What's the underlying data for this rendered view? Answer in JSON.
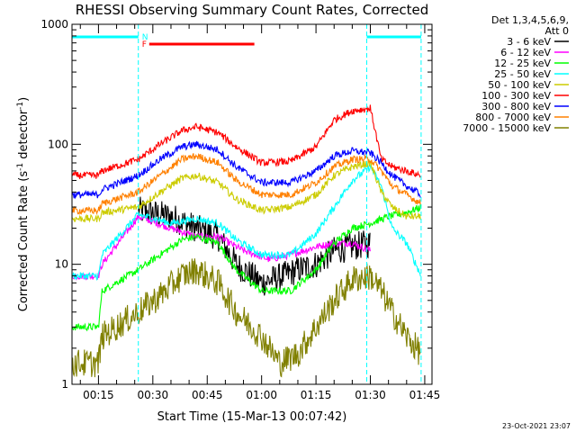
{
  "chart_data": {
    "type": "line",
    "title": "RHESSI Observing Summary Count Rates, Corrected",
    "xlabel": "Start Time (15-Mar-13 00:07:42)",
    "ylabel": "Corrected Count Rate (s⁻¹ detector⁻¹)",
    "ylabel_parts": {
      "main": "Corrected Count Rate (s",
      "sup1": "-1",
      "mid": " detector",
      "sup2": "-1",
      "end": ")"
    },
    "y_scale": "log",
    "xlim": [
      "00:07:42",
      "01:47:00"
    ],
    "ylim": [
      1,
      1000
    ],
    "x_ticks": [
      "00:15",
      "00:30",
      "00:45",
      "01:00",
      "01:15",
      "01:30",
      "01:45"
    ],
    "y_ticks": [
      "1",
      "10",
      "100",
      "1000"
    ],
    "legend": {
      "placement": "right-outside",
      "header": [
        "Det 1,3,4,5,6,9,",
        "Att 0"
      ]
    },
    "timestamp": "23-Oct-2021 23:07",
    "flags": [
      {
        "label": "F",
        "color": "#ff0000",
        "start": "00:29",
        "end": "00:58"
      },
      {
        "label": "N",
        "color": "#00ffff",
        "start": "00:07:42",
        "end": "00:26",
        "extra": [
          "01:29",
          "01:44"
        ]
      }
    ],
    "night_boundaries": [
      "00:26",
      "01:29",
      "01:44"
    ],
    "series": [
      {
        "name": "3 - 6 keV",
        "color": "#000000",
        "points": [
          [
            "00:26",
            28
          ],
          [
            "00:35",
            25
          ],
          [
            "00:42",
            20
          ],
          [
            "00:48",
            17
          ],
          [
            "00:53",
            10
          ],
          [
            "01:00",
            7
          ],
          [
            "01:06",
            8
          ],
          [
            "01:10",
            9
          ],
          [
            "01:15",
            10
          ],
          [
            "01:20",
            13
          ],
          [
            "01:25",
            14
          ],
          [
            "01:30",
            15
          ]
        ]
      },
      {
        "name": "6 - 12 keV",
        "color": "#ff00ff",
        "points": [
          [
            "00:07:42",
            8
          ],
          [
            "00:15",
            8
          ],
          [
            "00:16",
            10
          ],
          [
            "00:26",
            25
          ],
          [
            "00:35",
            20
          ],
          [
            "00:42",
            17
          ],
          [
            "00:48",
            17
          ],
          [
            "00:55",
            13
          ],
          [
            "01:02",
            11
          ],
          [
            "01:08",
            12
          ],
          [
            "01:15",
            14
          ],
          [
            "01:20",
            15
          ],
          [
            "01:25",
            15
          ],
          [
            "01:30",
            13
          ]
        ]
      },
      {
        "name": "12 - 25 keV",
        "color": "#00ff00",
        "points": [
          [
            "00:07:42",
            3
          ],
          [
            "00:15",
            3
          ],
          [
            "00:16",
            6
          ],
          [
            "00:26",
            9
          ],
          [
            "00:32",
            12
          ],
          [
            "00:38",
            16
          ],
          [
            "00:42",
            17
          ],
          [
            "00:48",
            15
          ],
          [
            "00:53",
            9
          ],
          [
            "01:00",
            6
          ],
          [
            "01:08",
            6
          ],
          [
            "01:15",
            9
          ],
          [
            "01:20",
            15
          ],
          [
            "01:25",
            20
          ],
          [
            "01:30",
            22
          ],
          [
            "01:35",
            25
          ],
          [
            "01:40",
            27
          ],
          [
            "01:44",
            30
          ]
        ]
      },
      {
        "name": "25 - 50 keV",
        "color": "#00ffff",
        "points": [
          [
            "00:07:42",
            8
          ],
          [
            "00:15",
            8
          ],
          [
            "00:16",
            12
          ],
          [
            "00:26",
            26
          ],
          [
            "00:35",
            22
          ],
          [
            "00:42",
            24
          ],
          [
            "00:48",
            22
          ],
          [
            "00:53",
            16
          ],
          [
            "01:00",
            12
          ],
          [
            "01:08",
            12
          ],
          [
            "01:15",
            18
          ],
          [
            "01:20",
            30
          ],
          [
            "01:25",
            50
          ],
          [
            "01:30",
            65
          ],
          [
            "01:33",
            45
          ],
          [
            "01:36",
            20
          ],
          [
            "01:40",
            15
          ],
          [
            "01:44",
            8
          ]
        ]
      },
      {
        "name": "50 - 100 keV",
        "color": "#cccc00",
        "points": [
          [
            "00:07:42",
            24
          ],
          [
            "00:15",
            24
          ],
          [
            "00:16",
            27
          ],
          [
            "00:26",
            30
          ],
          [
            "00:32",
            40
          ],
          [
            "00:38",
            52
          ],
          [
            "00:42",
            55
          ],
          [
            "00:48",
            48
          ],
          [
            "00:53",
            35
          ],
          [
            "01:00",
            28
          ],
          [
            "01:08",
            30
          ],
          [
            "01:15",
            38
          ],
          [
            "01:20",
            55
          ],
          [
            "01:25",
            65
          ],
          [
            "01:30",
            70
          ],
          [
            "01:33",
            40
          ],
          [
            "01:36",
            30
          ],
          [
            "01:40",
            25
          ],
          [
            "01:44",
            25
          ]
        ]
      },
      {
        "name": "100 - 300 keV",
        "color": "#ff0000",
        "points": [
          [
            "00:07:42",
            55
          ],
          [
            "00:15",
            55
          ],
          [
            "00:16",
            60
          ],
          [
            "00:26",
            75
          ],
          [
            "00:32",
            100
          ],
          [
            "00:38",
            130
          ],
          [
            "00:42",
            140
          ],
          [
            "00:48",
            125
          ],
          [
            "00:53",
            95
          ],
          [
            "01:00",
            70
          ],
          [
            "01:08",
            72
          ],
          [
            "01:15",
            95
          ],
          [
            "01:20",
            160
          ],
          [
            "01:25",
            190
          ],
          [
            "01:30",
            200
          ],
          [
            "01:33",
            75
          ],
          [
            "01:36",
            65
          ],
          [
            "01:40",
            60
          ],
          [
            "01:44",
            55
          ]
        ]
      },
      {
        "name": "300 - 800 keV",
        "color": "#0000ff",
        "points": [
          [
            "00:07:42",
            38
          ],
          [
            "00:15",
            38
          ],
          [
            "00:16",
            42
          ],
          [
            "00:26",
            55
          ],
          [
            "00:32",
            75
          ],
          [
            "00:38",
            95
          ],
          [
            "00:42",
            100
          ],
          [
            "00:48",
            90
          ],
          [
            "00:53",
            65
          ],
          [
            "01:00",
            48
          ],
          [
            "01:08",
            48
          ],
          [
            "01:15",
            60
          ],
          [
            "01:20",
            80
          ],
          [
            "01:25",
            88
          ],
          [
            "01:30",
            85
          ],
          [
            "01:33",
            70
          ],
          [
            "01:36",
            55
          ],
          [
            "01:40",
            45
          ],
          [
            "01:44",
            38
          ]
        ]
      },
      {
        "name": "800 - 7000 keV",
        "color": "#ff8000",
        "points": [
          [
            "00:07:42",
            28
          ],
          [
            "00:15",
            28
          ],
          [
            "00:16",
            32
          ],
          [
            "00:26",
            40
          ],
          [
            "00:32",
            55
          ],
          [
            "00:38",
            75
          ],
          [
            "00:42",
            80
          ],
          [
            "00:48",
            70
          ],
          [
            "00:53",
            50
          ],
          [
            "01:00",
            38
          ],
          [
            "01:08",
            38
          ],
          [
            "01:15",
            48
          ],
          [
            "01:20",
            65
          ],
          [
            "01:25",
            75
          ],
          [
            "01:30",
            75
          ],
          [
            "01:33",
            60
          ],
          [
            "01:36",
            45
          ],
          [
            "01:40",
            38
          ],
          [
            "01:44",
            32
          ]
        ]
      },
      {
        "name": "7000 - 15000 keV",
        "color": "#808000",
        "points": [
          [
            "00:07:42",
            1.5
          ],
          [
            "00:15",
            1.5
          ],
          [
            "00:16",
            2.5
          ],
          [
            "00:26",
            4
          ],
          [
            "00:32",
            5.5
          ],
          [
            "00:38",
            8
          ],
          [
            "00:42",
            9
          ],
          [
            "00:48",
            7
          ],
          [
            "00:53",
            4
          ],
          [
            "01:00",
            2.5
          ],
          [
            "01:05",
            1.5
          ],
          [
            "01:10",
            1.8
          ],
          [
            "01:15",
            3
          ],
          [
            "01:20",
            5
          ],
          [
            "01:25",
            7.5
          ],
          [
            "01:30",
            8
          ],
          [
            "01:33",
            6
          ],
          [
            "01:36",
            4
          ],
          [
            "01:40",
            2.5
          ],
          [
            "01:44",
            1.8
          ]
        ]
      }
    ]
  }
}
